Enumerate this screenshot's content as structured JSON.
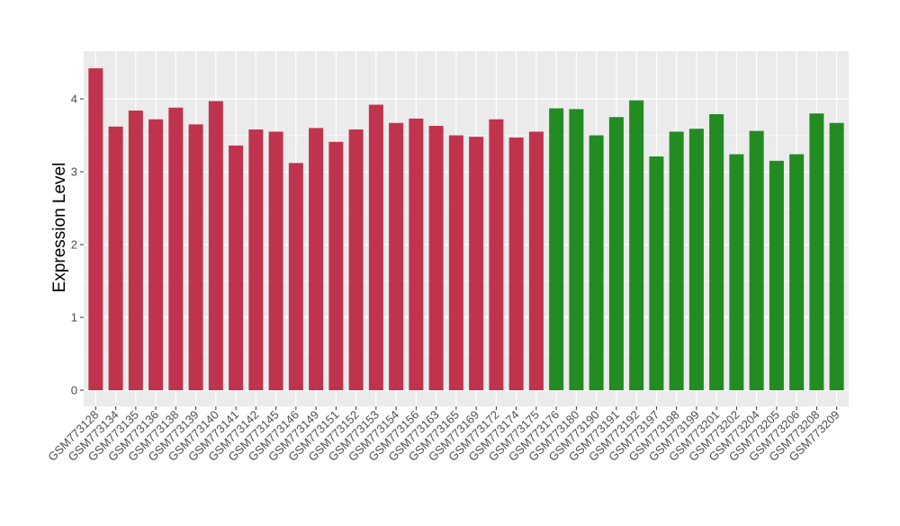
{
  "chart_data": {
    "type": "bar",
    "title": "",
    "xlabel": "",
    "ylabel": "Expression Level",
    "ylim": [
      0,
      4.65
    ],
    "yticks": [
      0,
      1,
      2,
      3,
      4
    ],
    "grid": true,
    "colors": {
      "group1": "#c0334d",
      "group2": "#228b22",
      "panel": "#ebebeb",
      "gridline": "#ffffff"
    },
    "categories": [
      "GSM773128",
      "GSM773134",
      "GSM773135",
      "GSM773136",
      "GSM773138",
      "GSM773139",
      "GSM773140",
      "GSM773141",
      "GSM773142",
      "GSM773145",
      "GSM773146",
      "GSM773149",
      "GSM773151",
      "GSM773152",
      "GSM773153",
      "GSM773154",
      "GSM773156",
      "GSM773163",
      "GSM773165",
      "GSM773169",
      "GSM773172",
      "GSM773174",
      "GSM773175",
      "GSM773176",
      "GSM773180",
      "GSM773190",
      "GSM773191",
      "GSM773192",
      "GSM773197",
      "GSM773198",
      "GSM773199",
      "GSM773201",
      "GSM773202",
      "GSM773204",
      "GSM773205",
      "GSM773206",
      "GSM773208",
      "GSM773209"
    ],
    "values": [
      4.42,
      3.62,
      3.84,
      3.72,
      3.88,
      3.65,
      3.97,
      3.36,
      3.58,
      3.55,
      3.12,
      3.6,
      3.41,
      3.58,
      3.92,
      3.67,
      3.73,
      3.63,
      3.5,
      3.48,
      3.72,
      3.47,
      3.55,
      3.87,
      3.86,
      3.5,
      3.75,
      3.98,
      3.21,
      3.55,
      3.59,
      3.79,
      3.24,
      3.56,
      3.15,
      3.24,
      3.8,
      3.67
    ],
    "groups": [
      1,
      1,
      1,
      1,
      1,
      1,
      1,
      1,
      1,
      1,
      1,
      1,
      1,
      1,
      1,
      1,
      1,
      1,
      1,
      1,
      1,
      1,
      1,
      2,
      2,
      2,
      2,
      2,
      2,
      2,
      2,
      2,
      2,
      2,
      2,
      2,
      2,
      2
    ]
  }
}
